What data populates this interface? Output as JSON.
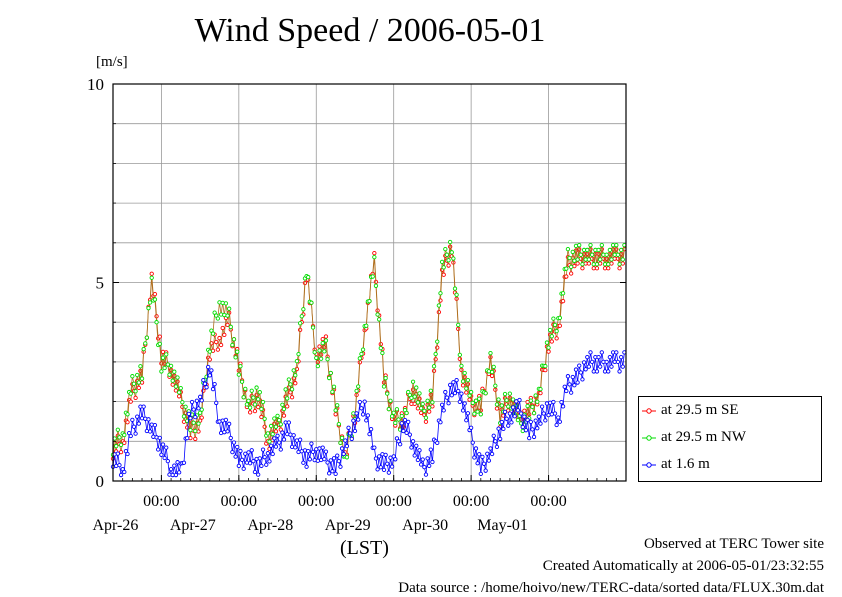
{
  "page": {
    "title": "Wind Speed / 2006-05-01",
    "y_unit": "[m/s]",
    "x_axis_label": "(LST)",
    "footer": [
      "Observed at TERC Tower site",
      "Created Automatically at 2006-05-01/23:32:55",
      "Data source : /home/hoivo/new/TERC-data/sorted  data/FLUX.30m.dat"
    ]
  },
  "legend": [
    {
      "label": "at 29.5 m SE",
      "color": "#ff0000"
    },
    {
      "label": "at 29.5 m NW",
      "color": "#00dd00"
    },
    {
      "label": "at 1.6 m",
      "color": "#0000ff"
    }
  ],
  "chart_data": {
    "type": "line",
    "title": "Wind Speed / 2006-05-01",
    "xlabel": "(LST)",
    "ylabel": "[m/s]",
    "ylim": [
      0,
      10
    ],
    "yticks": [
      0,
      5,
      10
    ],
    "xlim": [
      "2006-04-25T09:00",
      "2006-05-02T00:00"
    ],
    "xticks": [
      {
        "time": "2006-04-26T00:00",
        "hour_label": "00:00",
        "date_label": "Apr-26"
      },
      {
        "time": "2006-04-27T00:00",
        "hour_label": "00:00",
        "date_label": "Apr-27"
      },
      {
        "time": "2006-04-28T00:00",
        "hour_label": "00:00",
        "date_label": "Apr-28"
      },
      {
        "time": "2006-04-29T00:00",
        "hour_label": "00:00",
        "date_label": "Apr-29"
      },
      {
        "time": "2006-04-30T00:00",
        "hour_label": "00:00",
        "date_label": "Apr-30"
      },
      {
        "time": "2006-05-01T00:00",
        "hour_label": "00:00",
        "date_label": "May-01"
      }
    ],
    "grid": true,
    "legend_position": "right",
    "x_interval": "3 hours",
    "x": [
      "04-25 09:00",
      "04-25 12:00",
      "04-25 15:00",
      "04-25 18:00",
      "04-25 21:00",
      "04-26 00:00",
      "04-26 03:00",
      "04-26 06:00",
      "04-26 09:00",
      "04-26 12:00",
      "04-26 15:00",
      "04-26 18:00",
      "04-26 21:00",
      "04-27 00:00",
      "04-27 03:00",
      "04-27 06:00",
      "04-27 09:00",
      "04-27 12:00",
      "04-27 15:00",
      "04-27 18:00",
      "04-27 21:00",
      "04-28 00:00",
      "04-28 03:00",
      "04-28 06:00",
      "04-28 09:00",
      "04-28 12:00",
      "04-28 15:00",
      "04-28 18:00",
      "04-28 21:00",
      "04-29 00:00",
      "04-29 03:00",
      "04-29 06:00",
      "04-29 09:00",
      "04-29 12:00",
      "04-29 15:00",
      "04-29 18:00",
      "04-29 21:00",
      "04-30 00:00",
      "04-30 03:00",
      "04-30 06:00",
      "04-30 09:00",
      "04-30 12:00",
      "04-30 15:00",
      "04-30 18:00",
      "04-30 21:00",
      "05-01 00:00",
      "05-01 03:00",
      "05-01 06:00",
      "05-01 09:00",
      "05-01 12:00",
      "05-01 15:00",
      "05-01 18:00",
      "05-01 21:00",
      "05-02 00:00"
    ],
    "series": [
      {
        "name": "at 29.5 m SE",
        "color": "#ff0000",
        "values": [
          0.8,
          1.0,
          2.2,
          2.6,
          5.1,
          3.2,
          2.8,
          2.0,
          1.2,
          1.4,
          3.3,
          3.6,
          4.0,
          2.9,
          1.8,
          2.1,
          1.0,
          1.3,
          2.0,
          2.7,
          5.3,
          3.2,
          3.4,
          1.8,
          0.6,
          1.7,
          3.8,
          5.5,
          2.6,
          1.5,
          1.6,
          2.3,
          1.6,
          2.0,
          5.2,
          5.9,
          2.8,
          1.9,
          1.9,
          3.0,
          1.6,
          2.1,
          1.5,
          1.8,
          2.1,
          3.5,
          3.9,
          5.4,
          5.6,
          5.6,
          5.6,
          5.6,
          5.6,
          5.6
        ]
      },
      {
        "name": "at 29.5 m NW",
        "color": "#00dd00",
        "values": [
          0.9,
          1.2,
          2.4,
          2.7,
          5.0,
          3.0,
          2.9,
          2.1,
          1.4,
          1.6,
          3.5,
          4.5,
          4.1,
          2.8,
          1.9,
          2.3,
          1.2,
          1.4,
          2.2,
          2.9,
          5.4,
          3.1,
          3.3,
          1.9,
          0.5,
          1.8,
          3.9,
          5.4,
          2.5,
          1.6,
          1.5,
          2.5,
          1.7,
          2.1,
          5.4,
          6.0,
          2.9,
          2.0,
          1.8,
          3.1,
          1.7,
          2.2,
          1.4,
          1.7,
          2.2,
          3.6,
          4.1,
          5.6,
          5.7,
          5.7,
          5.7,
          5.7,
          5.7,
          5.7
        ]
      },
      {
        "name": "at 1.6 m",
        "color": "#0000ff",
        "values": [
          0.6,
          0.3,
          1.3,
          1.7,
          1.3,
          0.9,
          0.3,
          0.2,
          1.7,
          2.0,
          2.9,
          1.5,
          1.2,
          0.5,
          0.6,
          0.4,
          0.7,
          0.9,
          1.3,
          0.9,
          0.6,
          0.8,
          0.5,
          0.3,
          0.9,
          1.5,
          2.0,
          0.6,
          0.4,
          0.5,
          1.5,
          1.0,
          0.3,
          0.6,
          1.8,
          2.4,
          2.2,
          1.1,
          0.3,
          0.7,
          1.3,
          1.7,
          1.8,
          1.2,
          1.5,
          1.9,
          1.6,
          2.4,
          2.6,
          3.0,
          3.0,
          3.0,
          3.0,
          3.0
        ]
      }
    ]
  }
}
